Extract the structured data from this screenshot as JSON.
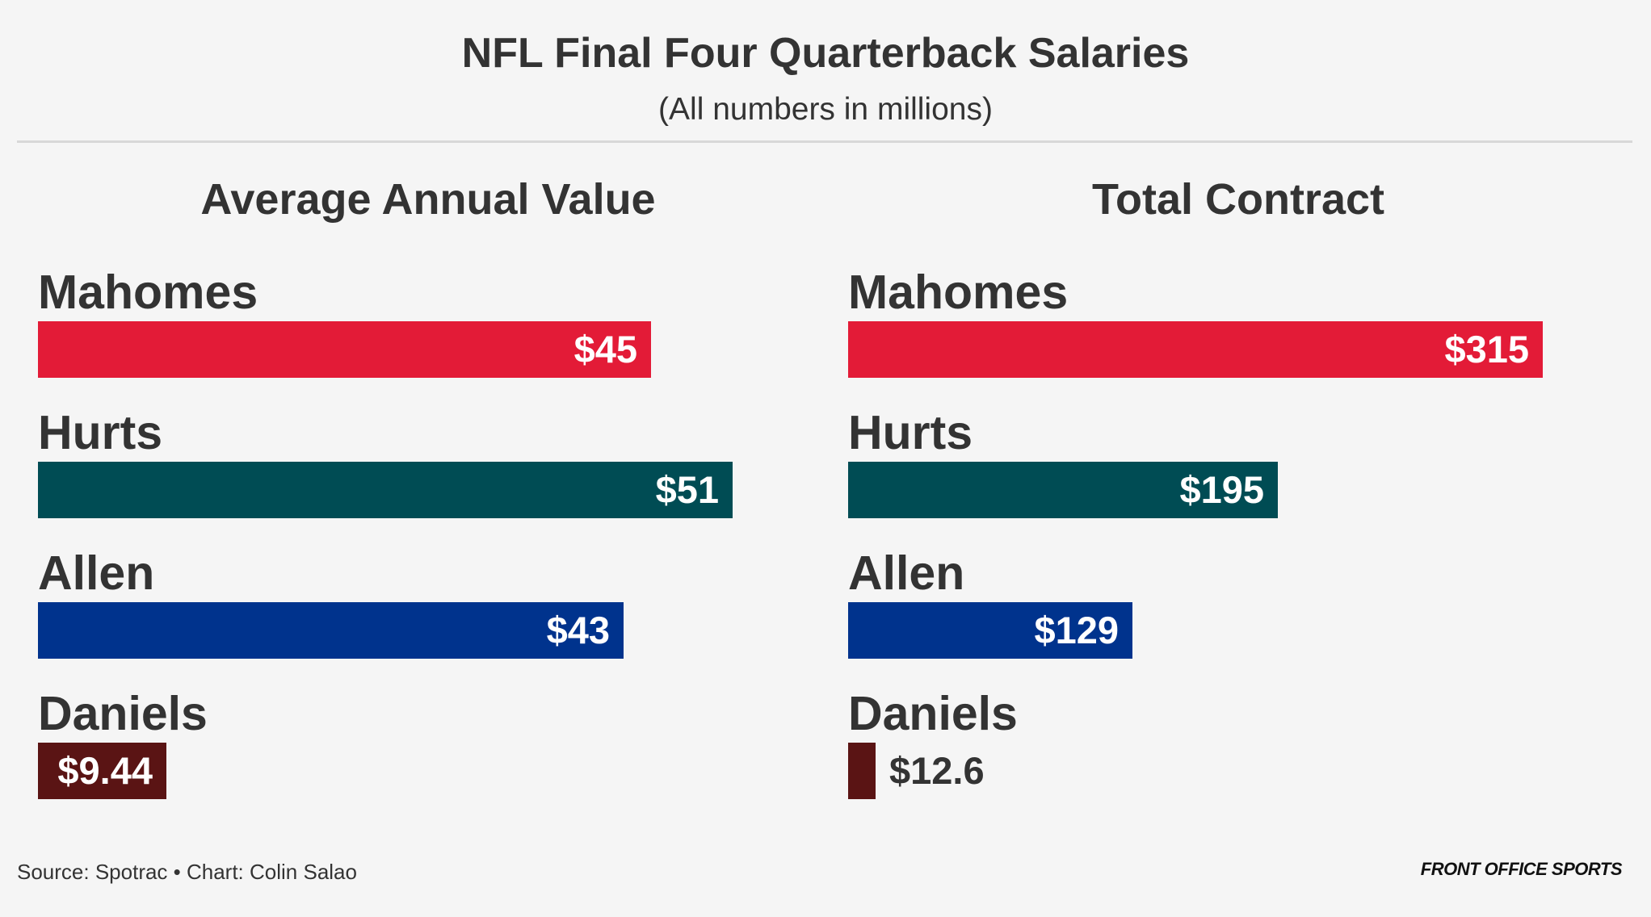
{
  "header": {
    "title": "NFL Final Four Quarterback Salaries",
    "subtitle": "(All numbers in millions)"
  },
  "chart_data": [
    {
      "type": "bar",
      "orientation": "horizontal",
      "title": "Average Annual Value",
      "categories": [
        "Mahomes",
        "Hurts",
        "Allen",
        "Daniels"
      ],
      "values": [
        45,
        51,
        43,
        9.44
      ],
      "labels": [
        "$45",
        "$51",
        "$43",
        "$9.44"
      ],
      "colors": [
        "#e31b37",
        "#004c54",
        "#00338d",
        "#5a1414"
      ],
      "xlim": [
        0,
        51
      ]
    },
    {
      "type": "bar",
      "orientation": "horizontal",
      "title": "Total Contract",
      "categories": [
        "Mahomes",
        "Hurts",
        "Allen",
        "Daniels"
      ],
      "values": [
        315,
        195,
        129,
        12.6
      ],
      "labels": [
        "$315",
        "$195",
        "$129",
        "$12.6"
      ],
      "colors": [
        "#e31b37",
        "#004c54",
        "#00338d",
        "#5a1414"
      ],
      "xlim": [
        0,
        315
      ]
    }
  ],
  "footer": {
    "source": "Source: Spotrac • Chart: Colin Salao",
    "brand": "FRONT OFFICE SPORTS"
  }
}
